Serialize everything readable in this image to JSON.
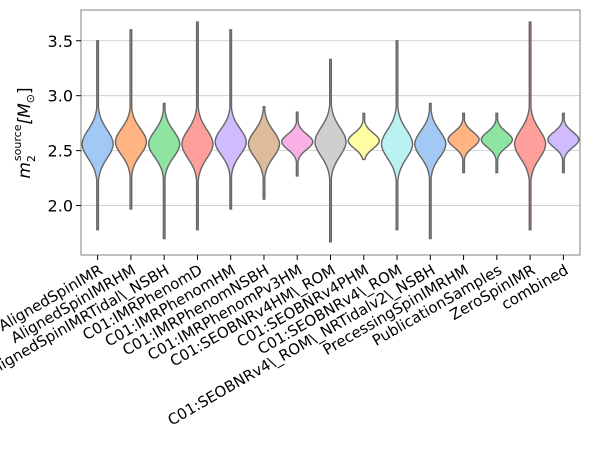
{
  "chart_data": {
    "type": "violin",
    "title": "",
    "xlabel": "",
    "ylabel_main": "m",
    "ylabel_sub": "2",
    "ylabel_sup": "source",
    "ylabel_unit": "[M",
    "ylabel_unit_sub": "⊙",
    "ylabel_close": "]",
    "ylim": [
      1.55,
      3.78
    ],
    "yticks": [
      2.0,
      2.5,
      3.0,
      3.5
    ],
    "ytick_labels": [
      "2.0",
      "2.5",
      "3.0",
      "3.5"
    ],
    "grid": "horizontal",
    "categories": [
      "AlignedSpinIMR",
      "AlignedSpinIMRHM",
      "AlignedSpinIMRTidal\\_NSBH",
      "C01:IMRPhenomD",
      "C01:IMRPhenomHM",
      "C01:IMRPhenomNSBH",
      "C01:IMRPhenomPv3HM",
      "C01:SEOBNRv4HM\\_ROM",
      "C01:SEOBNRv4PHM",
      "C01:SEOBNRv4\\_ROM",
      "C01:SEOBNRv4\\_ROM\\_NRTidalv2\\_NSBH",
      "PrecessingSpinIMRHM",
      "PublicationSamples",
      "ZeroSpinIMR",
      "combined"
    ],
    "series": [
      {
        "name": "AlignedSpinIMR",
        "center": 2.56,
        "spread": 0.13,
        "min": 1.78,
        "max": 3.5,
        "color": "#a1c9f4"
      },
      {
        "name": "AlignedSpinIMRHM",
        "center": 2.58,
        "spread": 0.12,
        "min": 1.97,
        "max": 3.6,
        "color": "#ffb482"
      },
      {
        "name": "AlignedSpinIMRTidal_NSBH",
        "center": 2.56,
        "spread": 0.12,
        "min": 1.7,
        "max": 2.93,
        "color": "#8de5a1"
      },
      {
        "name": "C01:IMRPhenomD",
        "center": 2.56,
        "spread": 0.13,
        "min": 1.78,
        "max": 3.67,
        "color": "#ff9f9b"
      },
      {
        "name": "C01:IMRPhenomHM",
        "center": 2.58,
        "spread": 0.12,
        "min": 1.97,
        "max": 3.6,
        "color": "#d0bbff"
      },
      {
        "name": "C01:IMRPhenomNSBH",
        "center": 2.56,
        "spread": 0.12,
        "min": 2.06,
        "max": 2.9,
        "color": "#debb9b"
      },
      {
        "name": "C01:IMRPhenomPv3HM",
        "center": 2.58,
        "spread": 0.07,
        "min": 2.27,
        "max": 2.85,
        "color": "#fab0e4"
      },
      {
        "name": "C01:SEOBNRv4HM_ROM",
        "center": 2.58,
        "spread": 0.13,
        "min": 1.67,
        "max": 3.33,
        "color": "#cfcfcf"
      },
      {
        "name": "C01:SEOBNRv4PHM",
        "center": 2.59,
        "spread": 0.07,
        "min": 2.42,
        "max": 2.84,
        "color": "#fffea3"
      },
      {
        "name": "C01:SEOBNRv4_ROM",
        "center": 2.56,
        "spread": 0.13,
        "min": 1.78,
        "max": 3.5,
        "color": "#b9f2f0"
      },
      {
        "name": "C01:SEOBNRv4_ROM_NRTidalv2_NSBH",
        "center": 2.56,
        "spread": 0.12,
        "min": 1.7,
        "max": 2.93,
        "color": "#a1c9f4"
      },
      {
        "name": "PrecessingSpinIMRHM",
        "center": 2.6,
        "spread": 0.07,
        "min": 2.3,
        "max": 2.84,
        "color": "#ffb482"
      },
      {
        "name": "PublicationSamples",
        "center": 2.6,
        "spread": 0.07,
        "min": 2.3,
        "max": 2.84,
        "color": "#8de5a1"
      },
      {
        "name": "ZeroSpinIMR",
        "center": 2.56,
        "spread": 0.13,
        "min": 1.78,
        "max": 3.67,
        "color": "#ff9f9b"
      },
      {
        "name": "combined",
        "center": 2.6,
        "spread": 0.07,
        "min": 2.3,
        "max": 2.84,
        "color": "#d0bbff"
      }
    ]
  }
}
